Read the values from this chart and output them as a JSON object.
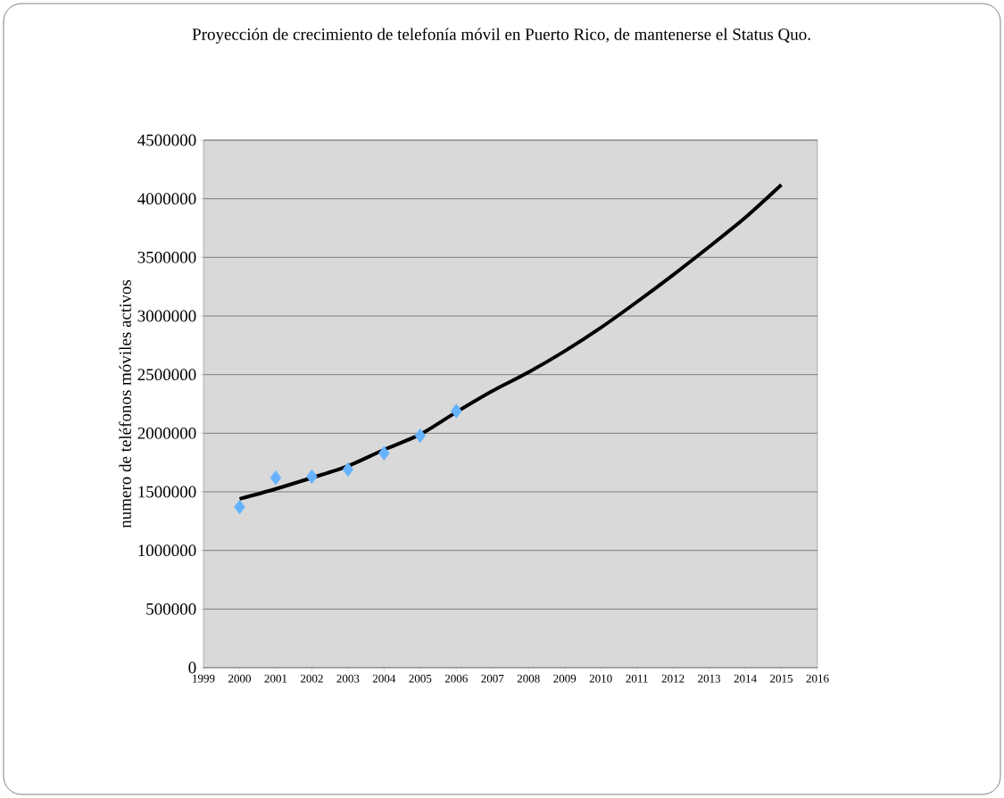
{
  "chart_data": {
    "type": "scatter",
    "title": "Proyección de crecimiento de telefonía móvil en Puerto Rico, de mantenerse el Status Quo.",
    "ylabel": "numero de teléfonos móviles activos",
    "x": [
      2000,
      2001,
      2002,
      2003,
      2004,
      2005,
      2006
    ],
    "series": [
      {
        "color": "#66b2ff",
        "marker": "diamond",
        "values": [
          1370000,
          1620000,
          1630000,
          1690000,
          1830000,
          1980000,
          2190000
        ]
      },
      {
        "type": "line",
        "color": "#000000",
        "x": [
          2000,
          2001,
          2002,
          2003,
          2004,
          2005,
          2006,
          2007,
          2008,
          2009,
          2010,
          2011,
          2012,
          2013,
          2014,
          2015
        ],
        "values": [
          1440000,
          1525000,
          1620000,
          1720000,
          1860000,
          1990000,
          2180000,
          2360000,
          2520000,
          2700000,
          2900000,
          3120000,
          3350000,
          3590000,
          3840000,
          4120000
        ]
      }
    ],
    "xlim": [
      1999,
      2016
    ],
    "xticks": [
      1999,
      2000,
      2001,
      2002,
      2003,
      2004,
      2005,
      2006,
      2007,
      2008,
      2009,
      2010,
      2011,
      2012,
      2013,
      2014,
      2015,
      2016
    ],
    "ylim": [
      0,
      4500000
    ],
    "yticks": [
      0,
      500000,
      1000000,
      1500000,
      2000000,
      2500000,
      3000000,
      3500000,
      4000000,
      4500000
    ],
    "grid": "y"
  }
}
